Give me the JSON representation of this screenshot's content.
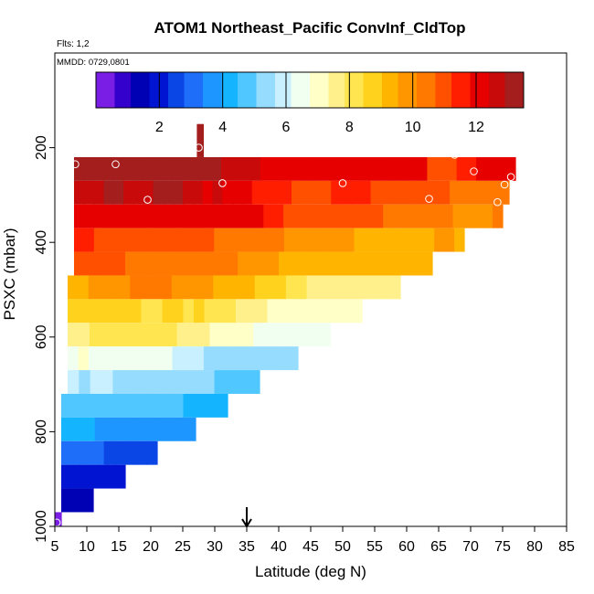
{
  "chart_data": {
    "type": "heatmap",
    "title": "ATOM1 Northeast_Pacific ConvInf_CldTop",
    "flights_label": "Flts: 1,2",
    "date_label": "MMDD: 0729,0801",
    "xlabel": "Latitude (deg N)",
    "ylabel": "PSXC (mbar)",
    "xlim": [
      5,
      85
    ],
    "ylim": [
      1000,
      0
    ],
    "x_ticks": [
      5,
      10,
      15,
      20,
      25,
      30,
      35,
      40,
      45,
      50,
      55,
      60,
      65,
      70,
      75,
      80,
      85
    ],
    "y_ticks": [
      200,
      400,
      600,
      800,
      1000
    ],
    "colorbar": {
      "range": [
        0,
        13.5
      ],
      "ticks": [
        2,
        4,
        6,
        8,
        10,
        12
      ],
      "colors": [
        "#7a1ee6",
        "#3300cc",
        "#0000b4",
        "#0014d2",
        "#0a46e6",
        "#1e6efa",
        "#1e96ff",
        "#14b4ff",
        "#50c8ff",
        "#96dcff",
        "#c8f0ff",
        "#f0fff0",
        "#ffffc8",
        "#fff08c",
        "#ffe650",
        "#ffd21e",
        "#ffb400",
        "#ff9600",
        "#ff7800",
        "#ff5000",
        "#ff1e00",
        "#e60000",
        "#c80a0a",
        "#a51e1e"
      ]
    },
    "rows": [
      {
        "p_top": 220,
        "p_bot": 270,
        "lat_start": 8,
        "lat_end": 77,
        "values": [
          13,
          13,
          13,
          13,
          13,
          13,
          13,
          13,
          13,
          13,
          13,
          13,
          13,
          13,
          13,
          12.5,
          12.5,
          12.5,
          12.5,
          12.3,
          12.2,
          12.2,
          12.1,
          12,
          12,
          12,
          12,
          12,
          12,
          12,
          12,
          12,
          12,
          12,
          12,
          12,
          11.2,
          10.8,
          11,
          11.5,
          11.8,
          12,
          12.1,
          12.3,
          12
        ]
      },
      {
        "p_top": 270,
        "p_bot": 320,
        "lat_start": 8,
        "lat_end": 76,
        "values": [
          12.5,
          12.8,
          12.8,
          13,
          13,
          12.8,
          12.5,
          12.8,
          13,
          13,
          13,
          12.8,
          12.5,
          12.3,
          12.5,
          12.3,
          12.2,
          12,
          11.8,
          11.8,
          11.5,
          11.3,
          11,
          11,
          11,
          11.2,
          11.3,
          11.5,
          11.5,
          11.5,
          11.2,
          11.2,
          11,
          10.8,
          10.8,
          10.8,
          10.8,
          10.8,
          10.5,
          10.5,
          10.5,
          10.5,
          10.5,
          10.5
        ]
      },
      {
        "p_top": 320,
        "p_bot": 370,
        "lat_start": 8,
        "lat_end": 75,
        "values": [
          12,
          12,
          12,
          12.2,
          12.2,
          12,
          12,
          12,
          12,
          12,
          12,
          12,
          12,
          12,
          12,
          12,
          12,
          12,
          12,
          11.5,
          11.3,
          11.2,
          11,
          11,
          11,
          10.8,
          10.8,
          10.8,
          10.8,
          10.8,
          10.8,
          10.5,
          10.5,
          10.5,
          10.5,
          10.2,
          10.2,
          10.2,
          10,
          10,
          10,
          10,
          10.2
        ]
      },
      {
        "p_top": 370,
        "p_bot": 420,
        "lat_start": 8,
        "lat_end": 69,
        "values": [
          11.5,
          11.3,
          11.2,
          11,
          11,
          11,
          10.8,
          10.8,
          10.8,
          10.8,
          10.8,
          11,
          11,
          10.8,
          10.5,
          10.5,
          10.2,
          10.5,
          10.5,
          10.5,
          10.2,
          10,
          10,
          9.8,
          9.8,
          9.8,
          9.8,
          9.8,
          9.5,
          9.5,
          9.5,
          9.5,
          9.5,
          9.5,
          9.5,
          9.5,
          9.8,
          9.8,
          9.5
        ]
      },
      {
        "p_top": 420,
        "p_bot": 470,
        "lat_start": 8,
        "lat_end": 64,
        "values": [
          11,
          11,
          10.8,
          10.8,
          10.8,
          10.5,
          10.5,
          10.5,
          10.5,
          10.5,
          10.5,
          10.2,
          10.2,
          10.2,
          10.2,
          10.2,
          10,
          10,
          9.8,
          9.8,
          9.5,
          9.5,
          9.5,
          9.5,
          9.5,
          9.3,
          9.3,
          9.2,
          9.2,
          9.2,
          9.2,
          9.2,
          9,
          9,
          9
        ]
      },
      {
        "p_top": 470,
        "p_bot": 520,
        "lat_start": 7,
        "lat_end": 59,
        "values": [
          9.5,
          9.5,
          9.8,
          9.8,
          10,
          10,
          10.2,
          10.2,
          10.2,
          10.2,
          10,
          10,
          10,
          9.8,
          9.5,
          9.3,
          9.2,
          9,
          8.8,
          8.5,
          8.5,
          8.2,
          8,
          7.8,
          7.8,
          7.8,
          7.8,
          7.8,
          7.6,
          7.5,
          7.5,
          7.5
        ]
      },
      {
        "p_top": 520,
        "p_bot": 570,
        "lat_start": 7,
        "lat_end": 53,
        "values": [
          8.8,
          8.5,
          8.5,
          8.8,
          8.8,
          8.8,
          8.5,
          8.2,
          8.3,
          8.5,
          8.5,
          8.3,
          8.5,
          8.2,
          8,
          8,
          7.8,
          7.6,
          7.5,
          7.3,
          7.2,
          7.2,
          7.2,
          7.2,
          7.2,
          7.1,
          7.1,
          7.1
        ]
      },
      {
        "p_top": 570,
        "p_bot": 620,
        "lat_start": 7,
        "lat_end": 48,
        "values": [
          7.6,
          7.8,
          8,
          8,
          8.2,
          8.2,
          8.2,
          8,
          8,
          8,
          7.8,
          7.6,
          7.5,
          7.2,
          7,
          6.8,
          6.8,
          6.6,
          6.5,
          6.4,
          6.4,
          6.4,
          6.4,
          6.4
        ]
      },
      {
        "p_top": 620,
        "p_bot": 670,
        "lat_start": 7,
        "lat_end": 43,
        "values": [
          6.6,
          6.8,
          6.6,
          6.6,
          6.5,
          6.5,
          6.4,
          6.2,
          6.3,
          6.3,
          6,
          5.8,
          5.7,
          5.6,
          5.5,
          5.6,
          5.6,
          5.6,
          5.6,
          5.6,
          5.5,
          5.5
        ]
      },
      {
        "p_top": 670,
        "p_bot": 720,
        "lat_start": 7,
        "lat_end": 37,
        "values": [
          5.8,
          5.6,
          5.8,
          5.8,
          5.6,
          5.6,
          5.5,
          5.3,
          5.3,
          5.3,
          5.2,
          5.2,
          5.2,
          5,
          5,
          5,
          5
        ]
      },
      {
        "p_top": 720,
        "p_bot": 770,
        "lat_start": 6,
        "lat_end": 32,
        "values": [
          4.8,
          4.8,
          4.7,
          4.6,
          4.6,
          4.5,
          4.5,
          4.5,
          4.5,
          4.5,
          4.5,
          4.4,
          4.4,
          4.3,
          4.2
        ]
      },
      {
        "p_top": 770,
        "p_bot": 820,
        "lat_start": 6,
        "lat_end": 27,
        "values": [
          4,
          4,
          4,
          3.9,
          3.9,
          3.8,
          3.8,
          3.8,
          3.8,
          3.6,
          3.6,
          3.6
        ]
      },
      {
        "p_top": 820,
        "p_bot": 870,
        "lat_start": 6,
        "lat_end": 21,
        "values": [
          3.2,
          3,
          3,
          3,
          2.8,
          2.8,
          2.8,
          2.6,
          2.6
        ]
      },
      {
        "p_top": 870,
        "p_bot": 920,
        "lat_start": 6,
        "lat_end": 16,
        "values": [
          2.1,
          2,
          2,
          2,
          2,
          2,
          2
        ]
      },
      {
        "p_top": 920,
        "p_bot": 970,
        "lat_start": 6,
        "lat_end": 11,
        "values": [
          1.2,
          1.4,
          1.6,
          1.6
        ]
      },
      {
        "p_top": 970,
        "p_bot": 1000,
        "lat_start": 5,
        "lat_end": 6,
        "values": [
          0.3
        ]
      },
      {
        "p_top": 150,
        "p_bot": 220,
        "lat_start": 27.2,
        "lat_end": 28.2,
        "values": [
          13.4
        ]
      }
    ],
    "markers": [
      {
        "lat": 8.2,
        "p": 235
      },
      {
        "lat": 14.5,
        "p": 235
      },
      {
        "lat": 27.5,
        "p": 200
      },
      {
        "lat": 19.5,
        "p": 310
      },
      {
        "lat": 31.2,
        "p": 275
      },
      {
        "lat": 50,
        "p": 275
      },
      {
        "lat": 63.5,
        "p": 308
      },
      {
        "lat": 67.5,
        "p": 215
      },
      {
        "lat": 70.5,
        "p": 250
      },
      {
        "lat": 75.3,
        "p": 278
      },
      {
        "lat": 76.3,
        "p": 262
      },
      {
        "lat": 74.2,
        "p": 315
      },
      {
        "lat": 5.3,
        "p": 992
      }
    ],
    "arrow_lat": 35
  }
}
